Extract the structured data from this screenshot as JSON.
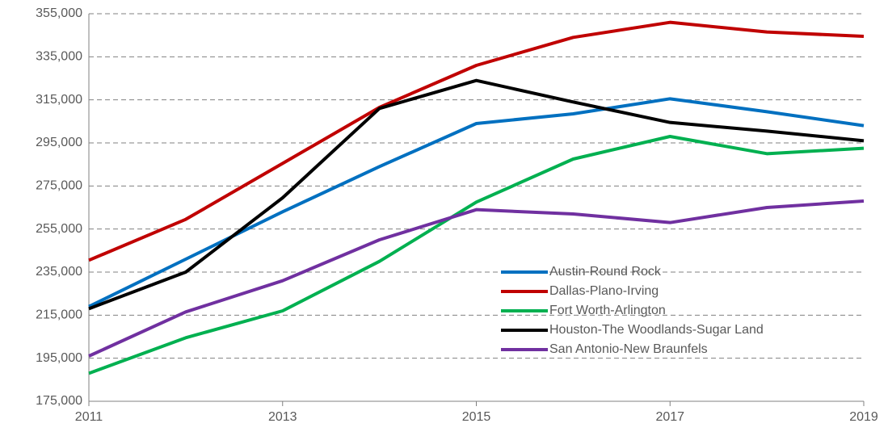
{
  "chart_data": {
    "type": "line",
    "x": [
      2011,
      2012,
      2013,
      2014,
      2015,
      2016,
      2017,
      2018,
      2019
    ],
    "xlim": [
      2011,
      2019
    ],
    "xticks": [
      2011,
      2013,
      2015,
      2017,
      2019
    ],
    "ylim": [
      175000,
      355000
    ],
    "yticks": [
      {
        "value": 175000,
        "label": "175,000"
      },
      {
        "value": 195000,
        "label": "195,000"
      },
      {
        "value": 215000,
        "label": "215,000"
      },
      {
        "value": 235000,
        "label": "235,000"
      },
      {
        "value": 255000,
        "label": "255,000"
      },
      {
        "value": 275000,
        "label": "275,000"
      },
      {
        "value": 295000,
        "label": "295,000"
      },
      {
        "value": 315000,
        "label": "315,000"
      },
      {
        "value": 335000,
        "label": "335,000"
      },
      {
        "value": 355000,
        "label": "355,000"
      }
    ],
    "grid": true,
    "legend_position": "lower right",
    "series": [
      {
        "name": "Austin-Round Rock",
        "color": "#0070c0",
        "values": [
          219000,
          241000,
          263000,
          284000,
          304000,
          308500,
          315500,
          309500,
          303000
        ]
      },
      {
        "name": "Dallas-Plano-Irving",
        "color": "#c00000",
        "values": [
          240500,
          259500,
          285500,
          311500,
          331000,
          344000,
          351000,
          346500,
          344500
        ]
      },
      {
        "name": "Fort Worth-Arlington",
        "color": "#00b050",
        "values": [
          188000,
          204500,
          217000,
          240000,
          267500,
          287500,
          298000,
          290000,
          292500
        ]
      },
      {
        "name": "Houston-The Woodlands-Sugar Land",
        "color": "#000000",
        "values": [
          218000,
          235000,
          269500,
          311000,
          324000,
          314000,
          304500,
          300500,
          296000
        ]
      },
      {
        "name": "San Antonio-New Braunfels",
        "color": "#7030a0",
        "values": [
          196000,
          216500,
          231000,
          250000,
          264000,
          262000,
          258000,
          265000,
          268000
        ]
      }
    ]
  }
}
